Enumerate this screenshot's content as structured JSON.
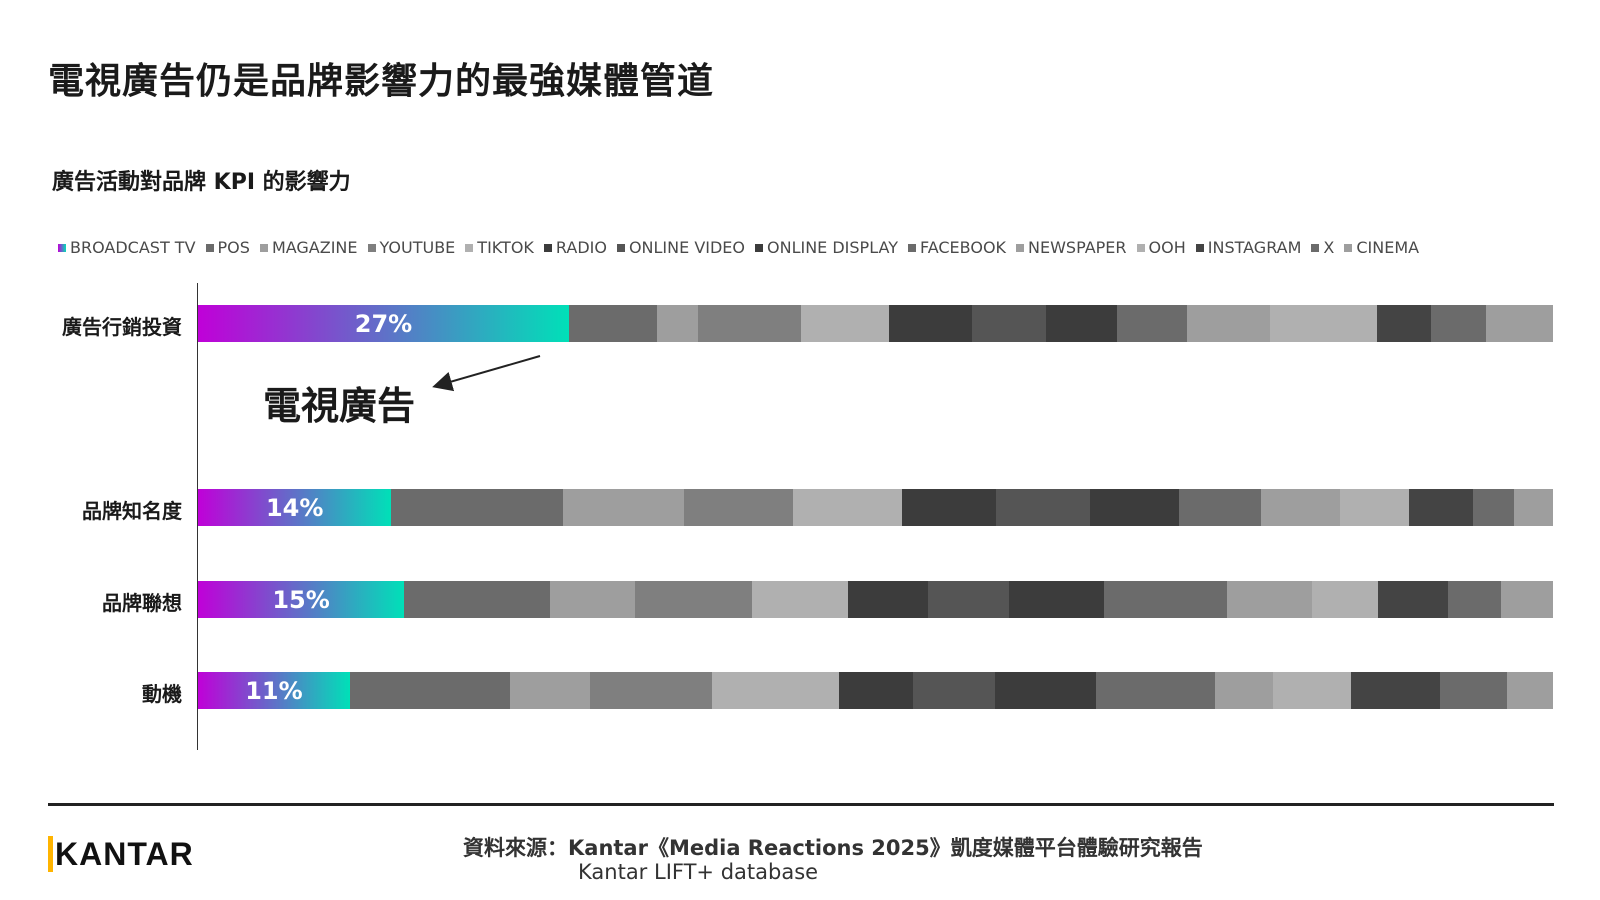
{
  "page": {
    "title": "電視廣告仍是品牌影響力的最強媒體管道",
    "annotation": "電視廣告",
    "source_line1": "資料來源：Kantar《Media Reactions 2025》凱度媒體平台體驗研究報告",
    "source_line2": "Kantar LIFT+ database",
    "logo": "KANTAR"
  },
  "colors": {
    "broadcast_tv_gradient": [
      "#c000d8",
      "#00e0b8"
    ],
    "dark": "#3c3c3c",
    "mid_dark": "#555555",
    "mid": "#6b6b6b",
    "mid_light": "#7f7f7f",
    "light": "#9e9e9e",
    "lighter": "#b0b0b0",
    "logo_accent": "#ffb400"
  },
  "chart_data": {
    "type": "bar",
    "orientation": "horizontal",
    "stacked": true,
    "percent_stacked": true,
    "title": "廣告活動對品牌 KPI 的影響力",
    "legend_position": "top",
    "categories": [
      "廣告行銷投資",
      "品牌知名度",
      "品牌聯想",
      "動機"
    ],
    "series": [
      {
        "name": "BROADCAST TV",
        "color": "gradient",
        "values": [
          27,
          14,
          15,
          11
        ],
        "labels": [
          "27%",
          "14%",
          "15%",
          "11%"
        ]
      },
      {
        "name": "POS",
        "color": "#6b6b6b",
        "values": [
          6.4,
          12.4,
          10.6,
          11.6
        ]
      },
      {
        "name": "MAGAZINE",
        "color": "#9e9e9e",
        "values": [
          3,
          8.8,
          6.2,
          5.8
        ]
      },
      {
        "name": "YOUTUBE",
        "color": "#7f7f7f",
        "values": [
          7.5,
          7.9,
          8.5,
          8.8
        ]
      },
      {
        "name": "TIKTOK",
        "color": "#b0b0b0",
        "values": [
          6.4,
          7.9,
          7,
          9.2
        ]
      },
      {
        "name": "RADIO",
        "color": "#3c3c3c",
        "values": [
          6,
          6.8,
          5.8,
          5.4
        ]
      },
      {
        "name": "ONLINE VIDEO",
        "color": "#555555",
        "values": [
          5.4,
          6.8,
          5.9,
          5.9
        ]
      },
      {
        "name": "ONLINE DISPLAY",
        "color": "#3c3c3c",
        "values": [
          5.2,
          6.4,
          6.9,
          7.3
        ]
      },
      {
        "name": "FACEBOOK",
        "color": "#6b6b6b",
        "values": [
          5.1,
          6,
          9,
          8.6
        ]
      },
      {
        "name": "NEWSPAPER",
        "color": "#9e9e9e",
        "values": [
          6,
          5.7,
          6.2,
          4.2
        ]
      },
      {
        "name": "OOH",
        "color": "#b0b0b0",
        "values": [
          7.8,
          5,
          4.8,
          5.7
        ]
      },
      {
        "name": "INSTAGRAM",
        "color": "#444444",
        "values": [
          3.9,
          4.6,
          5.1,
          6.4
        ]
      },
      {
        "name": "X",
        "color": "#6b6b6b",
        "values": [
          4,
          3,
          3.8,
          4.9
        ]
      },
      {
        "name": "CINEMA",
        "color": "#9e9e9e",
        "values": [
          4.9,
          2.8,
          3.8,
          3.3
        ]
      }
    ]
  }
}
